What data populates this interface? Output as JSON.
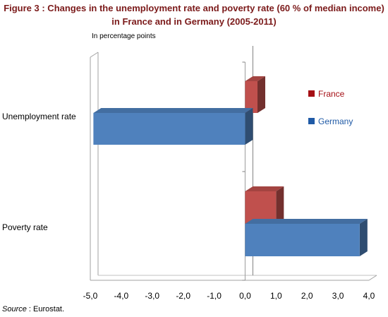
{
  "title_line1": "Figure 3 : Changes in the unemployment rate and poverty rate (60 % of median income)",
  "title_line2": "in France and in Germany (2005-2011)",
  "subtitle": "In percentage points",
  "source_label": "Source",
  "source_text": " : Eurostat.",
  "colors": {
    "France": "#c0504d",
    "Germany": "#4f81bd",
    "France_legend": "#a50f15",
    "Germany_legend": "#1f5aa6"
  },
  "chart_data": {
    "type": "bar",
    "orientation": "horizontal",
    "categories": [
      "Unemployment rate",
      "Poverty rate"
    ],
    "series": [
      {
        "name": "France",
        "values": [
          0.4,
          1.0
        ]
      },
      {
        "name": "Germany",
        "values": [
          -4.9,
          3.7
        ]
      }
    ],
    "xlim": [
      -5.0,
      4.0
    ],
    "xticks": [
      "-5,0",
      "-4,0",
      "-3,0",
      "-2,0",
      "-1,0",
      "0,0",
      "1,0",
      "2,0",
      "3,0",
      "4,0"
    ],
    "legend_position": "right",
    "grid": false
  }
}
